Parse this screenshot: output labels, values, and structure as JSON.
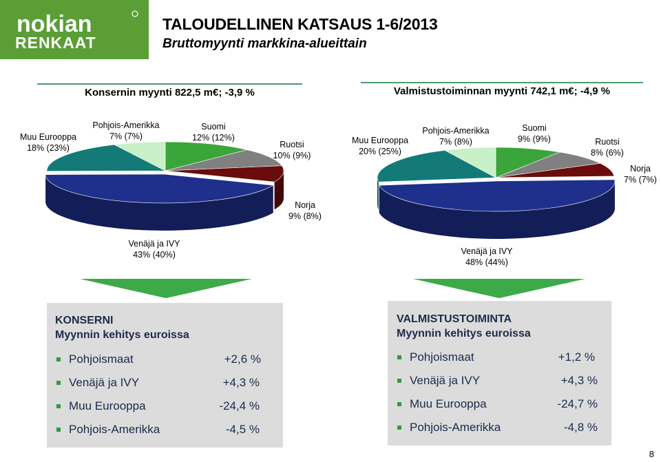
{
  "header": {
    "logo_text_top": "nokian",
    "logo_text_bottom": "RENKAAT",
    "title": "TALOUDELLINEN KATSAUS 1-6/2013",
    "subtitle": "Bruttomyynti markkina-alueittain"
  },
  "colors": {
    "logo_bg": "#5a9e35",
    "suomi": "#3aa53a",
    "ruotsi": "#808080",
    "norja": "#6b0c0c",
    "venaja": "#1e2f8c",
    "muu_eurooppa": "#137a78",
    "pohjois_amerikka": "#c8f0c8",
    "arrow": "#3caa48",
    "bullet": "#2e9a3c"
  },
  "chart_data": [
    {
      "type": "pie",
      "title": "Konsernin myynti 822,5 m€; -3,9 %",
      "slices": [
        {
          "key": "suomi",
          "name": "Suomi",
          "value": 12,
          "prev": 12,
          "label": "12% (12%)"
        },
        {
          "key": "ruotsi",
          "name": "Ruotsi",
          "value": 10,
          "prev": 9,
          "label": "10% (9%)"
        },
        {
          "key": "norja",
          "name": "Norja",
          "value": 9,
          "prev": 8,
          "label": "9% (8%)"
        },
        {
          "key": "venaja",
          "name": "Venäjä ja IVY",
          "value": 43,
          "prev": 40,
          "label": "43% (40%)"
        },
        {
          "key": "muu_eurooppa",
          "name": "Muu Eurooppa",
          "value": 18,
          "prev": 23,
          "label": "18% (23%)"
        },
        {
          "key": "pohjois_amerikka",
          "name": "Pohjois-Amerikka",
          "value": 7,
          "prev": 7,
          "label": "7% (7%)"
        }
      ]
    },
    {
      "type": "pie",
      "title": "Valmistustoiminnan myynti 742,1 m€; -4,9 %",
      "slices": [
        {
          "key": "suomi",
          "name": "Suomi",
          "value": 9,
          "prev": 9,
          "label": "9% (9%)"
        },
        {
          "key": "ruotsi",
          "name": "Ruotsi",
          "value": 8,
          "prev": 6,
          "label": "8% (6%)"
        },
        {
          "key": "norja",
          "name": "Norja",
          "value": 7,
          "prev": 7,
          "label": "7% (7%)"
        },
        {
          "key": "venaja",
          "name": "Venäjä ja IVY",
          "value": 48,
          "prev": 44,
          "label": "48% (44%)"
        },
        {
          "key": "muu_eurooppa",
          "name": "Muu Eurooppa",
          "value": 20,
          "prev": 25,
          "label": "20% (25%)"
        },
        {
          "key": "pohjois_amerikka",
          "name": "Pohjois-Amerikka",
          "value": 7,
          "prev": 8,
          "label": "7% (8%)"
        }
      ]
    }
  ],
  "boxes": [
    {
      "heading1": "KONSERNI",
      "heading2": "Myynnin kehitys euroissa",
      "items": [
        {
          "region": "Pohjoismaat",
          "change": "+2,6 %"
        },
        {
          "region": "Venäjä ja IVY",
          "change": "+4,3 %"
        },
        {
          "region": "Muu Eurooppa",
          "change": "-24,4 %"
        },
        {
          "region": "Pohjois-Amerikka",
          "change": "-4,5 %"
        }
      ]
    },
    {
      "heading1": "VALMISTUSTOIMINTA",
      "heading2": "Myynnin kehitys euroissa",
      "items": [
        {
          "region": "Pohjoismaat",
          "change": "+1,2 %"
        },
        {
          "region": "Venäjä ja IVY",
          "change": "+4,3 %"
        },
        {
          "region": "Muu Eurooppa",
          "change": "-24,7 %"
        },
        {
          "region": "Pohjois-Amerikka",
          "change": "-4,8 %"
        }
      ]
    }
  ],
  "page_number": "8"
}
